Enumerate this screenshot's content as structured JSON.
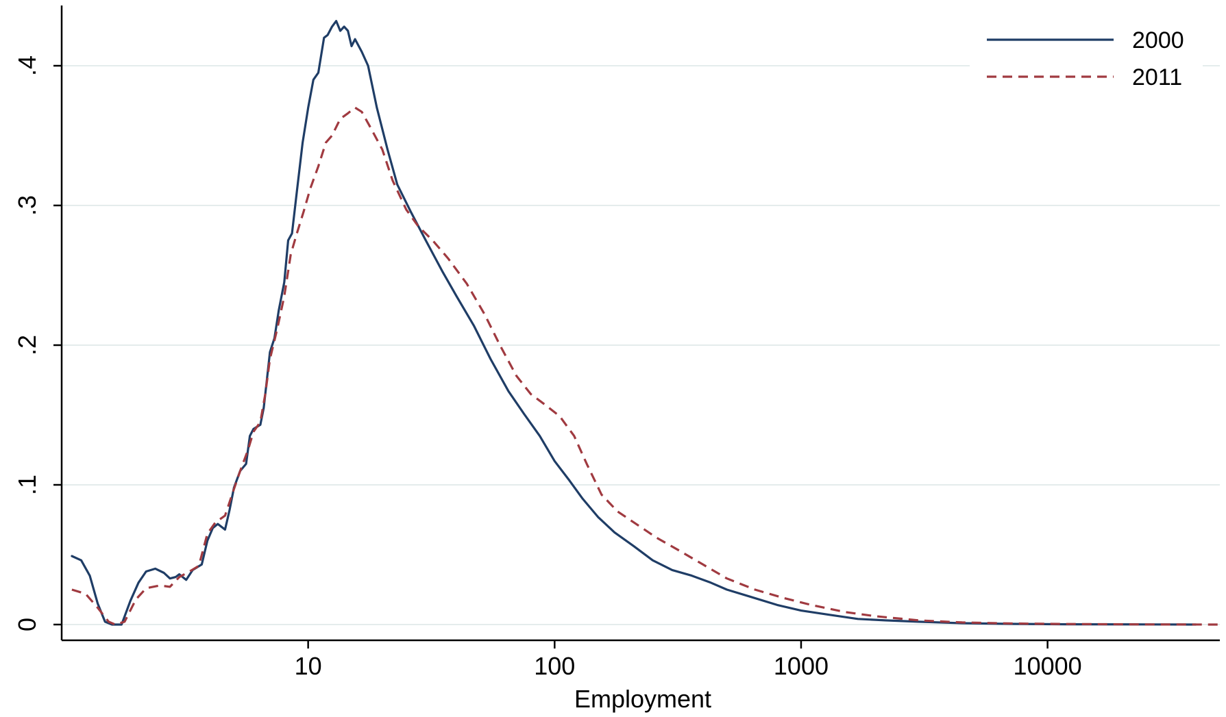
{
  "chart_data": {
    "type": "line",
    "xlabel": "Employment",
    "ylabel": "",
    "xscale": "log",
    "xlim": [
      1,
      50000
    ],
    "ylim": [
      0,
      0.44
    ],
    "x_ticks": [
      10,
      100,
      1000,
      10000
    ],
    "x_tick_labels": [
      "10",
      "100",
      "1000",
      "10000"
    ],
    "y_ticks": [
      0,
      0.1,
      0.2,
      0.3,
      0.4
    ],
    "y_tick_labels": [
      "0",
      ".1",
      ".2",
      ".3",
      ".4"
    ],
    "grid": true,
    "legend": "top-right",
    "series": [
      {
        "name": "2000",
        "color": "#1f3d66",
        "dash": "solid",
        "points": [
          [
            1.1,
            0.049
          ],
          [
            1.2,
            0.046
          ],
          [
            1.3,
            0.035
          ],
          [
            1.4,
            0.015
          ],
          [
            1.5,
            0.002
          ],
          [
            1.6,
            0.0
          ],
          [
            1.75,
            0.0
          ],
          [
            1.9,
            0.017
          ],
          [
            2.05,
            0.03
          ],
          [
            2.2,
            0.038
          ],
          [
            2.4,
            0.04
          ],
          [
            2.6,
            0.037
          ],
          [
            2.75,
            0.033
          ],
          [
            2.9,
            0.034
          ],
          [
            3.0,
            0.036
          ],
          [
            3.2,
            0.032
          ],
          [
            3.4,
            0.039
          ],
          [
            3.7,
            0.043
          ],
          [
            3.9,
            0.06
          ],
          [
            4.1,
            0.069
          ],
          [
            4.3,
            0.072
          ],
          [
            4.6,
            0.068
          ],
          [
            4.8,
            0.082
          ],
          [
            5.0,
            0.098
          ],
          [
            5.3,
            0.11
          ],
          [
            5.6,
            0.115
          ],
          [
            5.8,
            0.135
          ],
          [
            6.0,
            0.14
          ],
          [
            6.4,
            0.143
          ],
          [
            6.6,
            0.155
          ],
          [
            6.8,
            0.175
          ],
          [
            7.0,
            0.195
          ],
          [
            7.3,
            0.205
          ],
          [
            7.6,
            0.225
          ],
          [
            8.0,
            0.245
          ],
          [
            8.3,
            0.275
          ],
          [
            8.6,
            0.28
          ],
          [
            9.0,
            0.31
          ],
          [
            9.5,
            0.345
          ],
          [
            10.0,
            0.37
          ],
          [
            10.5,
            0.39
          ],
          [
            11.0,
            0.395
          ],
          [
            11.6,
            0.42
          ],
          [
            12.0,
            0.422
          ],
          [
            12.5,
            0.428
          ],
          [
            13.0,
            0.432
          ],
          [
            13.5,
            0.425
          ],
          [
            14.0,
            0.428
          ],
          [
            14.5,
            0.425
          ],
          [
            15.0,
            0.414
          ],
          [
            15.5,
            0.419
          ],
          [
            16.5,
            0.41
          ],
          [
            17.5,
            0.4
          ],
          [
            19.0,
            0.37
          ],
          [
            21.0,
            0.34
          ],
          [
            23.0,
            0.315
          ],
          [
            26.0,
            0.296
          ],
          [
            30.0,
            0.275
          ],
          [
            35.0,
            0.253
          ],
          [
            40.0,
            0.235
          ],
          [
            47.0,
            0.214
          ],
          [
            55.0,
            0.19
          ],
          [
            65.0,
            0.167
          ],
          [
            75.0,
            0.151
          ],
          [
            87.0,
            0.135
          ],
          [
            100.0,
            0.117
          ],
          [
            115.0,
            0.103
          ],
          [
            130.0,
            0.09
          ],
          [
            150.0,
            0.077
          ],
          [
            175.0,
            0.066
          ],
          [
            210.0,
            0.056
          ],
          [
            250.0,
            0.046
          ],
          [
            300.0,
            0.039
          ],
          [
            360.0,
            0.035
          ],
          [
            430.0,
            0.03
          ],
          [
            500.0,
            0.025
          ],
          [
            620.0,
            0.02
          ],
          [
            800.0,
            0.014
          ],
          [
            1000.0,
            0.01
          ],
          [
            1300.0,
            0.007
          ],
          [
            1700.0,
            0.004
          ],
          [
            2200.0,
            0.003
          ],
          [
            3000.0,
            0.002
          ],
          [
            4500.0,
            0.001
          ],
          [
            7000.0,
            0.0005
          ],
          [
            12000.0,
            0.0002
          ],
          [
            25000.0,
            0.0001
          ],
          [
            40000.0,
            0.0
          ]
        ]
      },
      {
        "name": "2011",
        "color": "#a03a40",
        "dash": "dashed",
        "points": [
          [
            1.1,
            0.025
          ],
          [
            1.25,
            0.022
          ],
          [
            1.4,
            0.012
          ],
          [
            1.55,
            0.002
          ],
          [
            1.65,
            0.0
          ],
          [
            1.8,
            0.002
          ],
          [
            2.0,
            0.018
          ],
          [
            2.2,
            0.026
          ],
          [
            2.5,
            0.028
          ],
          [
            2.75,
            0.027
          ],
          [
            3.0,
            0.034
          ],
          [
            3.3,
            0.038
          ],
          [
            3.6,
            0.042
          ],
          [
            3.9,
            0.065
          ],
          [
            4.2,
            0.073
          ],
          [
            4.6,
            0.078
          ],
          [
            5.0,
            0.097
          ],
          [
            5.3,
            0.11
          ],
          [
            5.7,
            0.125
          ],
          [
            6.0,
            0.138
          ],
          [
            6.4,
            0.145
          ],
          [
            6.7,
            0.165
          ],
          [
            7.0,
            0.19
          ],
          [
            7.5,
            0.212
          ],
          [
            8.0,
            0.235
          ],
          [
            8.5,
            0.265
          ],
          [
            9.0,
            0.28
          ],
          [
            9.6,
            0.296
          ],
          [
            10.2,
            0.312
          ],
          [
            11.0,
            0.328
          ],
          [
            11.8,
            0.345
          ],
          [
            12.5,
            0.35
          ],
          [
            13.5,
            0.362
          ],
          [
            14.5,
            0.366
          ],
          [
            15.5,
            0.37
          ],
          [
            16.5,
            0.367
          ],
          [
            18.0,
            0.355
          ],
          [
            20.0,
            0.34
          ],
          [
            22.0,
            0.318
          ],
          [
            25.0,
            0.297
          ],
          [
            28.0,
            0.285
          ],
          [
            32.0,
            0.275
          ],
          [
            37.0,
            0.262
          ],
          [
            44.0,
            0.244
          ],
          [
            52.0,
            0.222
          ],
          [
            60.0,
            0.2
          ],
          [
            70.0,
            0.178
          ],
          [
            80.0,
            0.165
          ],
          [
            92.0,
            0.157
          ],
          [
            105.0,
            0.149
          ],
          [
            120.0,
            0.135
          ],
          [
            135.0,
            0.115
          ],
          [
            155.0,
            0.093
          ],
          [
            180.0,
            0.081
          ],
          [
            210.0,
            0.073
          ],
          [
            260.0,
            0.062
          ],
          [
            320.0,
            0.053
          ],
          [
            400.0,
            0.043
          ],
          [
            500.0,
            0.033
          ],
          [
            650.0,
            0.025
          ],
          [
            850.0,
            0.019
          ],
          [
            1100.0,
            0.014
          ],
          [
            1500.0,
            0.009
          ],
          [
            2000.0,
            0.006
          ],
          [
            3000.0,
            0.003
          ],
          [
            4500.0,
            0.0015
          ],
          [
            7000.0,
            0.0008
          ],
          [
            12000.0,
            0.0004
          ],
          [
            25000.0,
            0.0001
          ],
          [
            50000.0,
            0.0
          ]
        ]
      }
    ]
  }
}
